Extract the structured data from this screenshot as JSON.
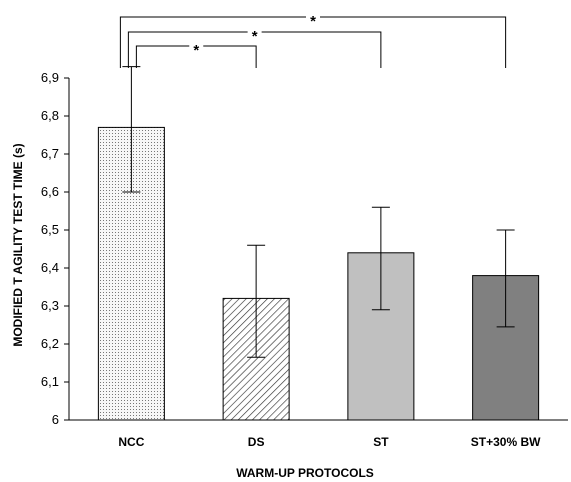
{
  "chart_data": {
    "type": "bar",
    "title": "",
    "xlabel": "WARM-UP  PROTOCOLS",
    "ylabel": "MODIFIED T AGILITY TEST TIME (s)",
    "ylim": [
      6.0,
      6.9
    ],
    "yticks": [
      "6",
      "6,1",
      "6,2",
      "6,3",
      "6,4",
      "6,5",
      "6,6",
      "6,7",
      "6,8",
      "6,9"
    ],
    "ytick_values": [
      6.0,
      6.1,
      6.2,
      6.3,
      6.4,
      6.5,
      6.6,
      6.7,
      6.8,
      6.9
    ],
    "grid": false,
    "categories": [
      "NCC",
      "DS",
      "ST",
      "ST+30% BW"
    ],
    "values": [
      6.77,
      6.32,
      6.44,
      6.38
    ],
    "error_low": [
      6.6,
      6.165,
      6.29,
      6.245
    ],
    "error_high": [
      6.93,
      6.46,
      6.56,
      6.5
    ],
    "bar_styles": [
      {
        "pattern": "dots",
        "fill": "#f2f2f2"
      },
      {
        "pattern": "hatch",
        "fill": "#ffffff"
      },
      {
        "pattern": "solid",
        "fill": "#c0c0c0"
      },
      {
        "pattern": "solid",
        "fill": "#808080"
      }
    ],
    "significance": [
      {
        "from": "NCC",
        "to": "DS",
        "label": "*"
      },
      {
        "from": "NCC",
        "to": "ST",
        "label": "*"
      },
      {
        "from": "NCC",
        "to": "ST+30% BW",
        "label": "*"
      }
    ]
  }
}
